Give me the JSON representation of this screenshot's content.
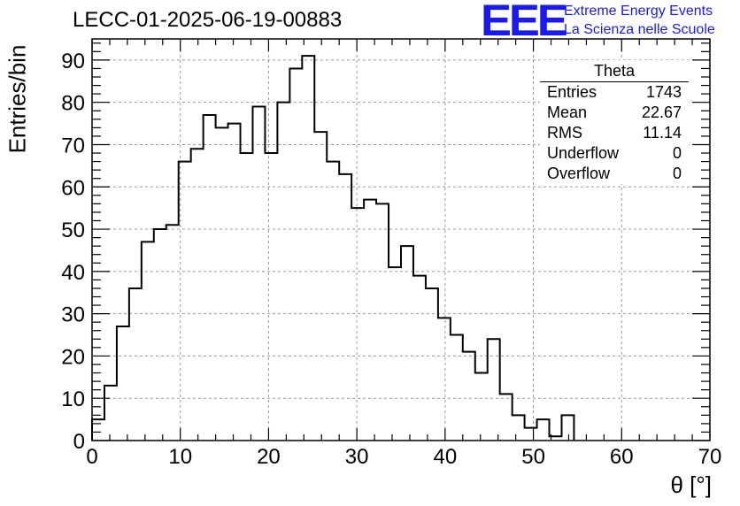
{
  "header": {
    "title": "LECC-01-2025-06-19-00883",
    "logo_text": "EEE",
    "logo_line1": "Extreme Energy Events",
    "logo_line2": "La Scienza nelle Scuole"
  },
  "stats_box": {
    "title": "Theta",
    "rows": [
      {
        "label": "Entries",
        "value": "1743"
      },
      {
        "label": "Mean",
        "value": "22.67"
      },
      {
        "label": "RMS",
        "value": "11.14"
      },
      {
        "label": "Underflow",
        "value": "0"
      },
      {
        "label": "Overflow",
        "value": "0"
      }
    ]
  },
  "colors": {
    "accent": "#1a1aee",
    "line": "#000000",
    "grid": "#999999"
  },
  "chart_data": {
    "type": "histogram",
    "title": "LECC-01-2025-06-19-00883",
    "xlabel": "θ [°]",
    "ylabel": "Entries/bin",
    "xlim": [
      0,
      70
    ],
    "ylim": [
      0,
      95
    ],
    "bin_width": 1.4,
    "bins_start": 0,
    "values": [
      5,
      13,
      27,
      36,
      47,
      50,
      51,
      66,
      69,
      77,
      74,
      75,
      68,
      79,
      68,
      80,
      88,
      91,
      73,
      66,
      63,
      55,
      57,
      56,
      41,
      46,
      39,
      36,
      29,
      25,
      21,
      16,
      24,
      11,
      6,
      3,
      5,
      1,
      6
    ],
    "x_ticks": [
      0,
      10,
      20,
      30,
      40,
      50,
      60,
      70
    ],
    "y_ticks": [
      0,
      10,
      20,
      30,
      40,
      50,
      60,
      70,
      80,
      90
    ],
    "grid": true
  }
}
